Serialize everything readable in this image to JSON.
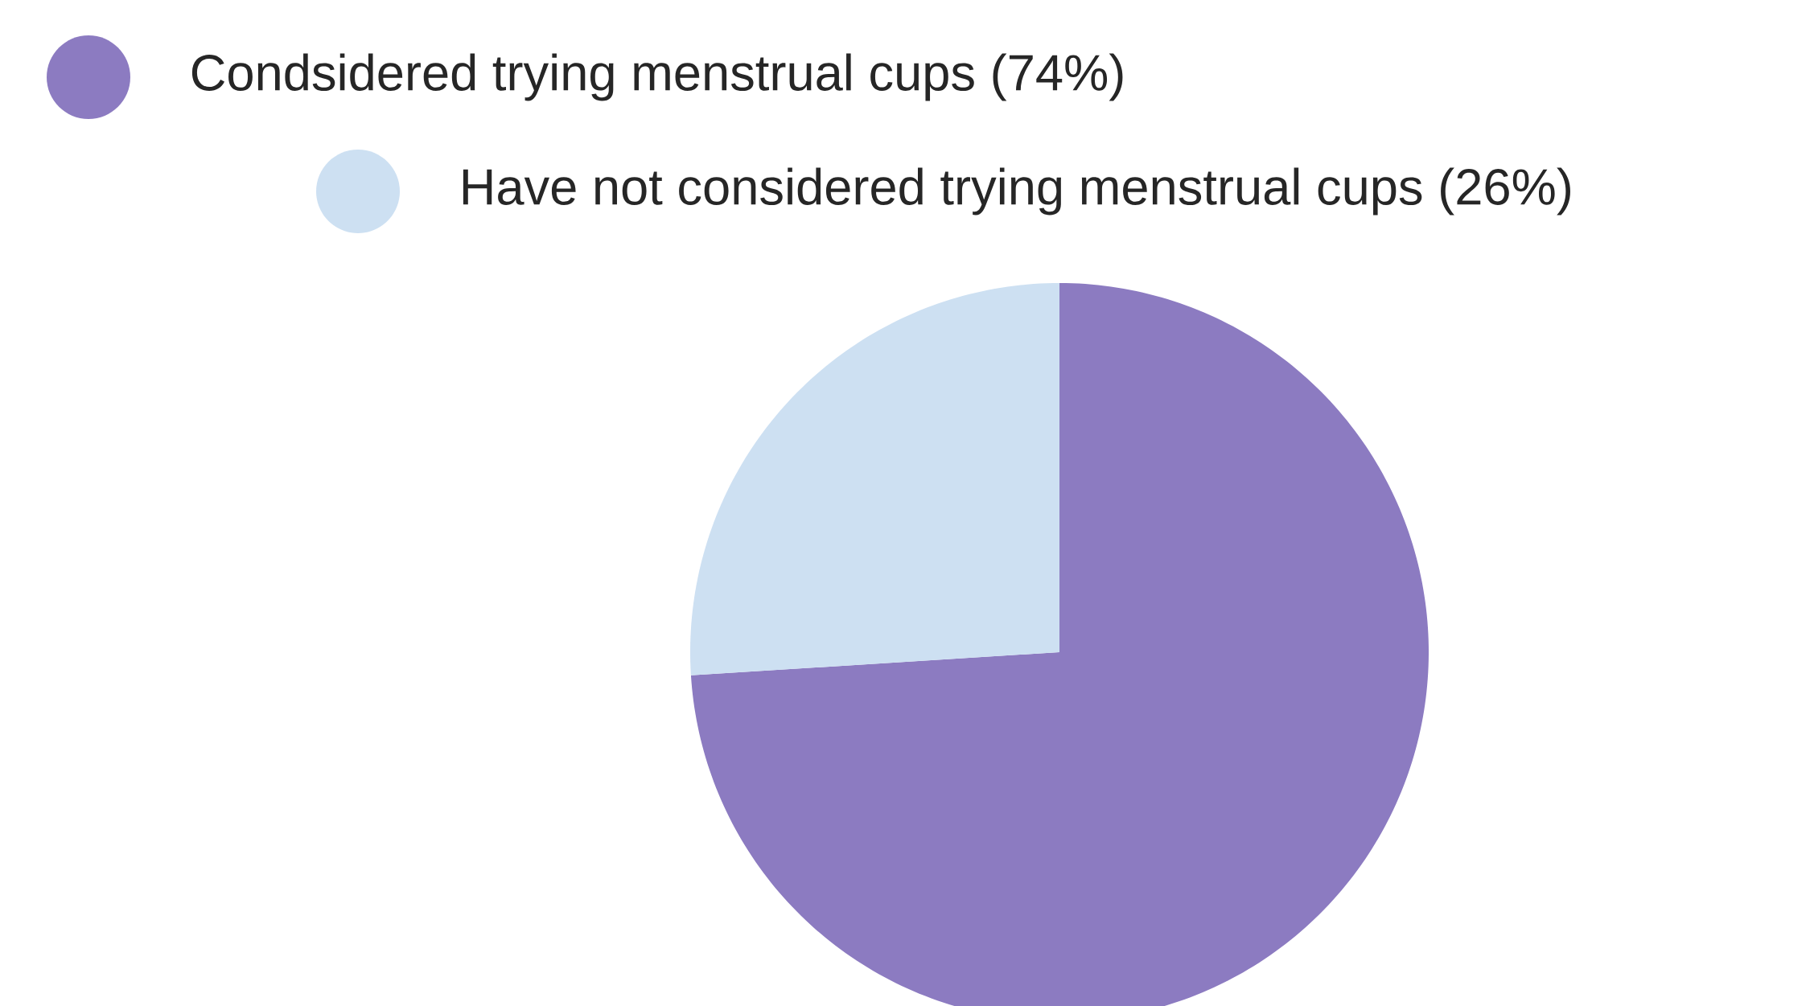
{
  "chart_data": {
    "type": "pie",
    "categories": [
      "Condsidered trying menstrual cups (74%)",
      "Have not considered trying menstrual cups (26%)"
    ],
    "values": [
      74,
      26
    ],
    "colors": [
      "#8c7bc1",
      "#cde0f2"
    ],
    "legend": "top left"
  }
}
